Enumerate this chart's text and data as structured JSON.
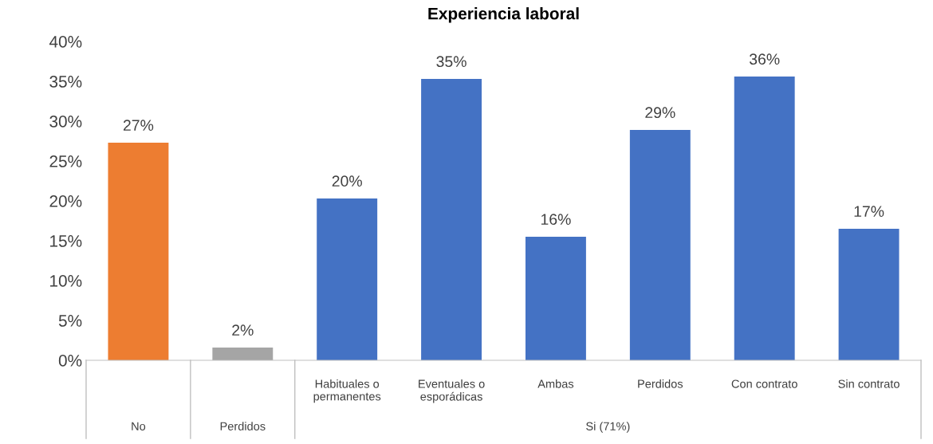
{
  "chart_data": {
    "type": "bar",
    "title": "Experiencia laboral",
    "categories": [
      null,
      null,
      "Habituales o\npermanentes",
      "Eventuales o\nesporádicas",
      "Ambas",
      "Perdidos",
      "Con contrato",
      "Sin contrato"
    ],
    "values": [
      27.3,
      1.6,
      20.3,
      35.3,
      15.5,
      28.9,
      35.6,
      16.5
    ],
    "colors": [
      "#ed7d31",
      "#a5a5a5",
      "#4472c4",
      "#4472c4",
      "#4472c4",
      "#4472c4",
      "#4472c4",
      "#4472c4"
    ],
    "value_labels": [
      "27%",
      "2%",
      "20%",
      "35%",
      "16%",
      "29%",
      "36%",
      "17%"
    ],
    "annotations": [
      "No",
      "Perdidos",
      "Si (71%)"
    ],
    "ylim": [
      0,
      40
    ],
    "yticks": [
      {
        "value": 0,
        "label": "0%"
      },
      {
        "value": 5,
        "label": "5%"
      },
      {
        "value": 10,
        "label": "10%"
      },
      {
        "value": 15,
        "label": "15%"
      },
      {
        "value": 20,
        "label": "20%"
      },
      {
        "value": 25,
        "label": "25%"
      },
      {
        "value": 30,
        "label": "30%"
      },
      {
        "value": 35,
        "label": "35%"
      },
      {
        "value": 40,
        "label": "40%"
      }
    ],
    "grid": false,
    "legend": false
  }
}
